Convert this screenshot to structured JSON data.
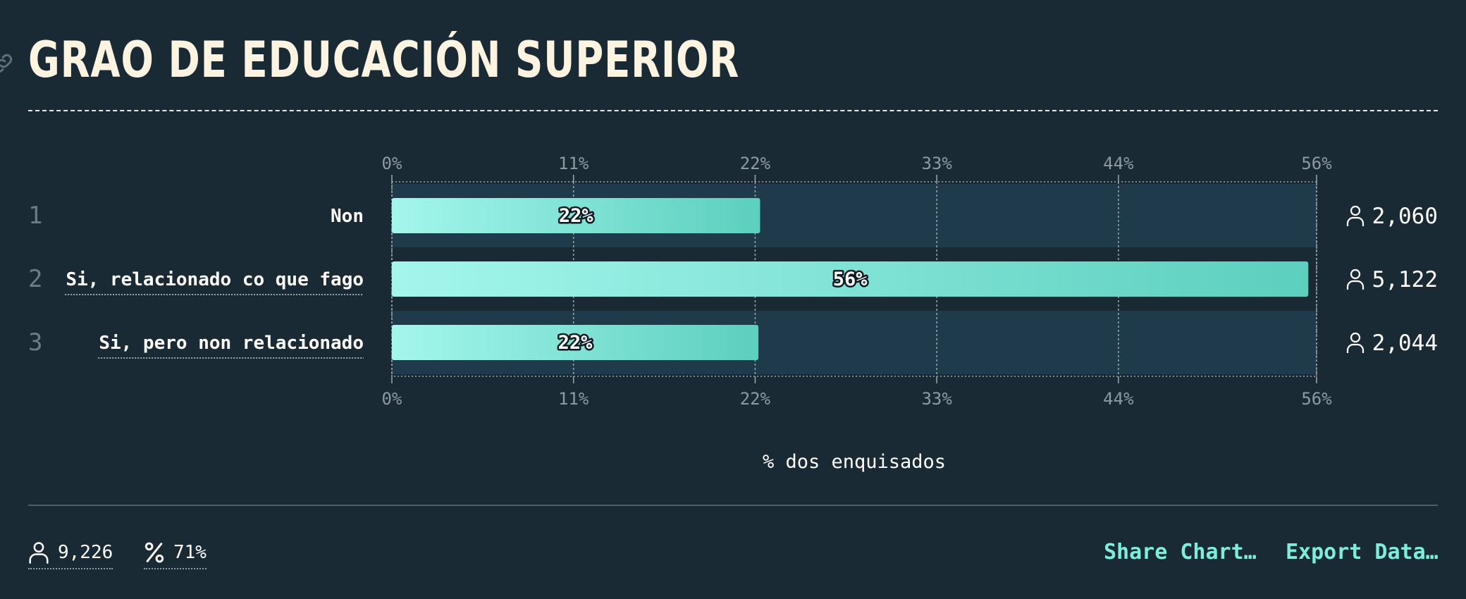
{
  "page": {
    "title": "GRAO DE EDUCACIÓN SUPERIOR"
  },
  "icons": {
    "link": "link-icon",
    "respondent": "person-icon",
    "percent": "percent-icon"
  },
  "colors": {
    "background": "#1a2a35",
    "title": "#fdf3e1",
    "bar_gradient_start": "#a4f6ec",
    "bar_gradient_end": "#5ccfbe",
    "track": "#1f3a4a",
    "link": "#7eeedb"
  },
  "chart_data": {
    "type": "bar",
    "orientation": "horizontal",
    "xlabel": "% dos enquisados",
    "xlim": [
      0,
      56
    ],
    "ticks": [
      0,
      11,
      22,
      33,
      44,
      56
    ],
    "tick_labels": [
      "0%",
      "11%",
      "22%",
      "33%",
      "44%",
      "56%"
    ],
    "grid": true,
    "categories": [
      "Non",
      "Si, relacionado co que fago",
      "Si, pero non relacionado"
    ],
    "ranks": [
      "1",
      "2",
      "3"
    ],
    "values": [
      22.3,
      55.5,
      22.2
    ],
    "value_labels": [
      "22%",
      "56%",
      "22%"
    ],
    "counts": [
      "2,060",
      "5,122",
      "2,044"
    ]
  },
  "footer": {
    "respondents": "9,226",
    "response_rate": "71%",
    "share_label": "Share Chart…",
    "export_label": "Export Data…"
  }
}
